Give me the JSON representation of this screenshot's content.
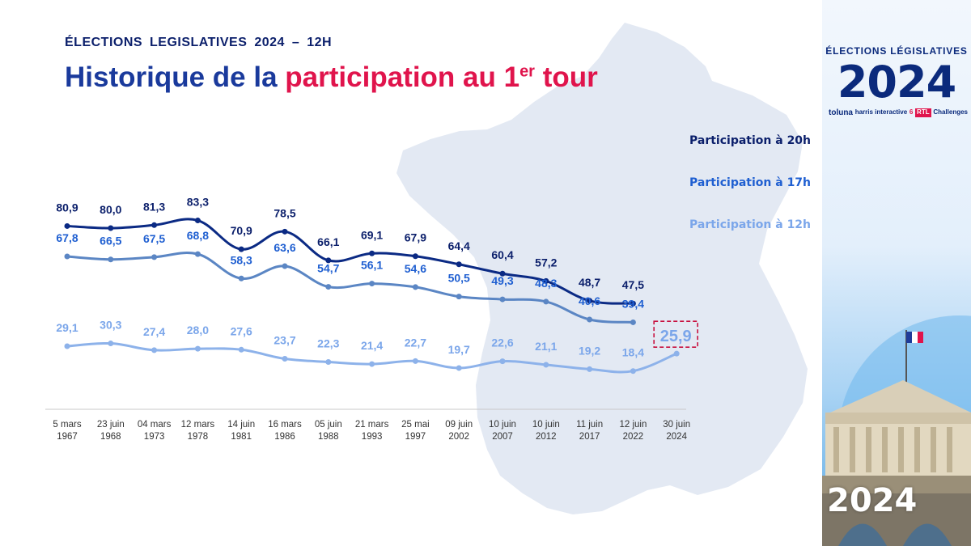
{
  "header": {
    "kicker": "ÉLECTIONS  LEGISLATIVES  2024 – 12H",
    "title_part1": "Historique de la ",
    "title_part2": "participation au 1",
    "title_sup": "er",
    "title_part3": " tour"
  },
  "side_panel": {
    "subtitle": "ÉLECTIONS LÉGISLATIVES",
    "year": "2024",
    "logos": [
      "toluna",
      "harris interactive",
      "6",
      "RTL",
      "Challenges"
    ]
  },
  "colors": {
    "title_blue": "#1a3a9c",
    "title_red": "#e0144c",
    "series_20h": "#0b2a84",
    "series_17h": "#5b86c4",
    "series_12h": "#8db2ea",
    "highlight_box": "#c8103e",
    "map_fill": "#e3e9f3"
  },
  "chart_data": {
    "type": "line",
    "x": [
      "5 mars\n1967",
      "23 juin\n1968",
      "04 mars\n1973",
      "12 mars\n1978",
      "14 juin\n1981",
      "16 mars\n1986",
      "05 juin\n1988",
      "21 mars\n1993",
      "25 mai\n1997",
      "09 juin\n2002",
      "10 juin\n2007",
      "10 juin\n2012",
      "11 juin\n2017",
      "12 juin\n2022",
      "30 juin\n2024"
    ],
    "series": [
      {
        "name": "Participation à 20h",
        "labels": [
          "80,9",
          "80,0",
          "81,3",
          "83,3",
          "70,9",
          "78,5",
          "66,1",
          "69,1",
          "67,9",
          "64,4",
          "60,4",
          "57,2",
          "48,7",
          "47,5",
          ""
        ],
        "values": [
          80.9,
          80.0,
          81.3,
          83.3,
          70.9,
          78.5,
          66.1,
          69.1,
          67.9,
          64.4,
          60.4,
          57.2,
          48.7,
          47.5,
          null
        ]
      },
      {
        "name": "Participation à 17h",
        "labels": [
          "67,8",
          "66,5",
          "67,5",
          "68,8",
          "58,3",
          "63,6",
          "54,7",
          "56,1",
          "54,6",
          "50,5",
          "49,3",
          "48,3",
          "40,6",
          "39,4",
          ""
        ],
        "values": [
          67.8,
          66.5,
          67.5,
          68.8,
          58.3,
          63.6,
          54.7,
          56.1,
          54.6,
          50.5,
          49.3,
          48.3,
          40.6,
          39.4,
          null
        ]
      },
      {
        "name": "Participation à 12h",
        "labels": [
          "29,1",
          "30,3",
          "27,4",
          "28,0",
          "27,6",
          "23,7",
          "22,3",
          "21,4",
          "22,7",
          "19,7",
          "22,6",
          "21,1",
          "19,2",
          "18,4",
          "25,9"
        ],
        "values": [
          29.1,
          30.3,
          27.4,
          28.0,
          27.6,
          23.7,
          22.3,
          21.4,
          22.7,
          19.7,
          22.6,
          21.1,
          19.2,
          18.4,
          25.9
        ]
      }
    ],
    "highlight": {
      "series": 2,
      "index": 14
    },
    "legend": "right",
    "grid": false
  }
}
